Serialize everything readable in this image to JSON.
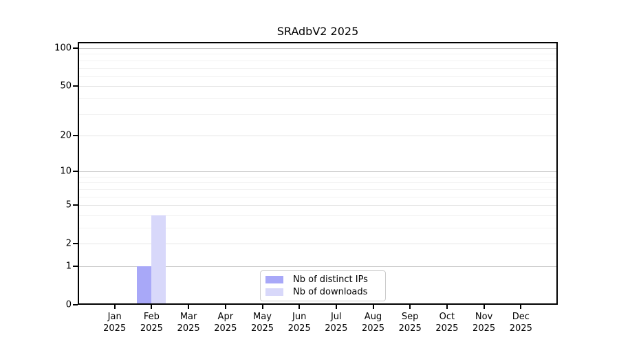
{
  "chart_data": {
    "type": "bar",
    "title": "SRAdbV2 2025",
    "xlabel": "",
    "ylabel": "",
    "categories": [
      "Jan",
      "Feb",
      "Mar",
      "Apr",
      "May",
      "Jun",
      "Jul",
      "Aug",
      "Sep",
      "Oct",
      "Nov",
      "Dec"
    ],
    "x_tick_year": "2025",
    "series": [
      {
        "name": "Nb of distinct IPs",
        "color": "#a8a8f8",
        "values": [
          0,
          1,
          0,
          0,
          0,
          0,
          0,
          0,
          0,
          0,
          0,
          0
        ]
      },
      {
        "name": "Nb of downloads",
        "color": "#d8d8fa",
        "values": [
          0,
          4,
          0,
          0,
          0,
          0,
          0,
          0,
          0,
          0,
          0,
          0
        ]
      }
    ],
    "y_scale": "log1p",
    "ylim": [
      0,
      113
    ],
    "y_ticks": [
      0,
      1,
      2,
      5,
      10,
      20,
      50,
      100
    ],
    "y_gridlines": {
      "major": [
        1,
        10,
        100
      ],
      "mid": [
        2,
        5,
        20,
        50
      ],
      "minor": [
        3,
        4,
        6,
        7,
        8,
        9,
        30,
        40,
        60,
        70,
        80,
        90
      ]
    },
    "grid": true,
    "legend_position": "bottom-center",
    "colors": {
      "major_grid": "#c9c9c9",
      "mid_grid": "#e4e4e4",
      "minor_grid": "#f2f2f2",
      "axis": "#000000",
      "legend_border": "#cccccc",
      "background": "#ffffff",
      "text": "#000000"
    }
  }
}
